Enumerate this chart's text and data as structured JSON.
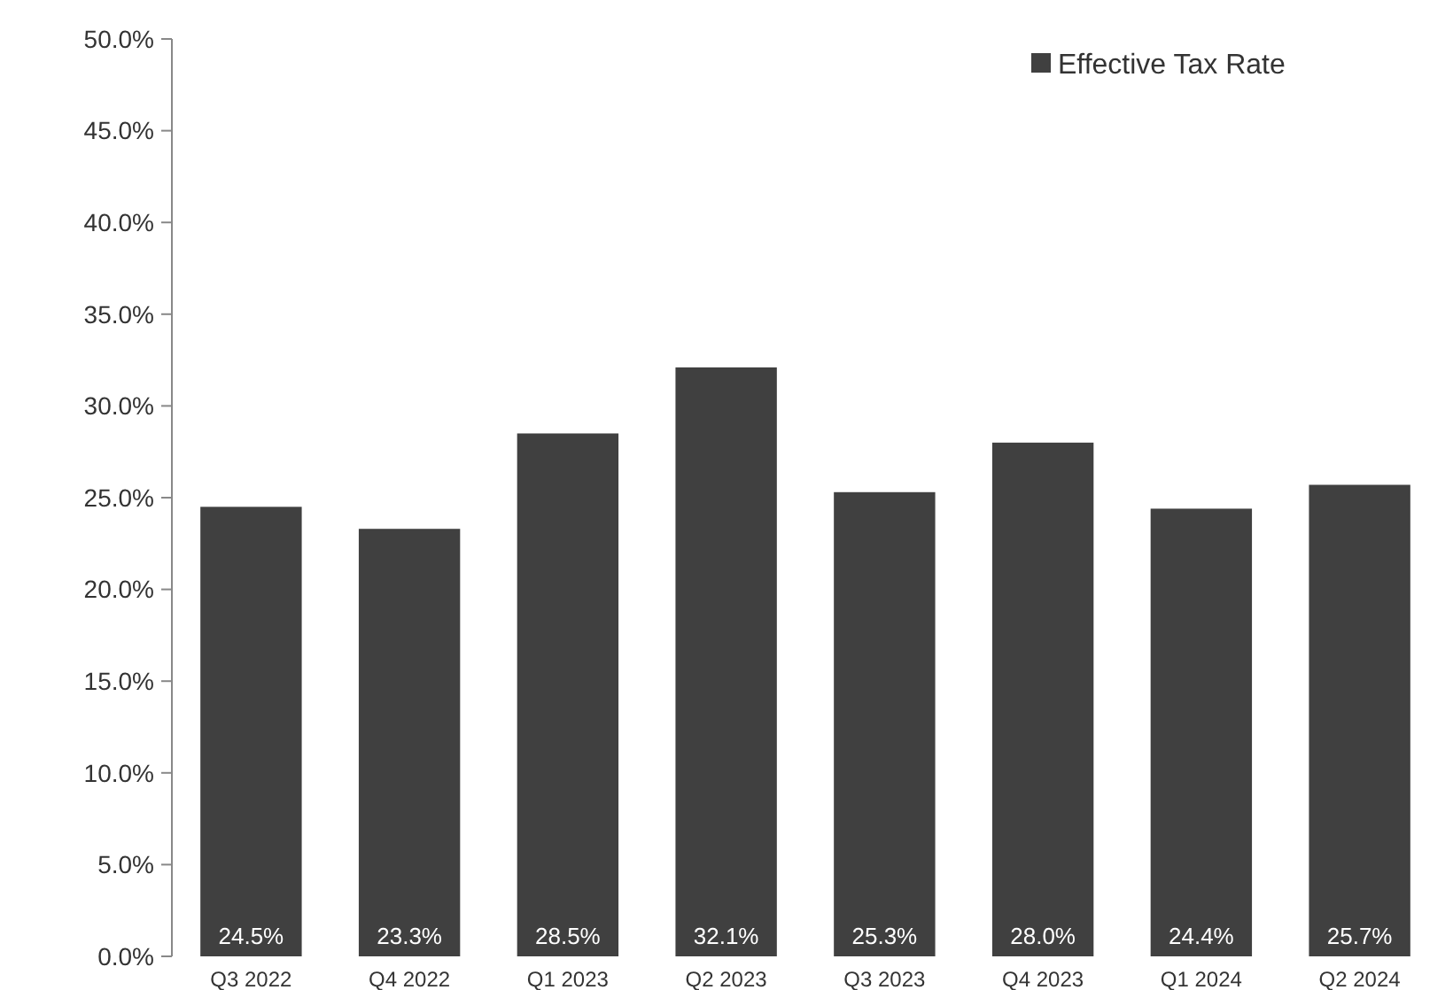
{
  "chart_data": {
    "type": "bar",
    "categories": [
      "Q3 2022",
      "Q4 2022",
      "Q1 2023",
      "Q2 2023",
      "Q3 2023",
      "Q4 2023",
      "Q1 2024",
      "Q2 2024"
    ],
    "series": [
      {
        "name": "Effective Tax Rate",
        "color": "#404040",
        "values": [
          24.5,
          23.3,
          28.5,
          32.1,
          25.3,
          28.0,
          24.4,
          25.7
        ],
        "value_labels": [
          "24.5%",
          "23.3%",
          "28.5%",
          "32.1%",
          "25.3%",
          "28.0%",
          "24.4%",
          "25.7%"
        ]
      }
    ],
    "ylim": [
      0,
      50
    ],
    "yticks": [
      {
        "value": 0,
        "label": "0.0%"
      },
      {
        "value": 5,
        "label": "5.0%"
      },
      {
        "value": 10,
        "label": "10.0%"
      },
      {
        "value": 15,
        "label": "15.0%"
      },
      {
        "value": 20,
        "label": "20.0%"
      },
      {
        "value": 25,
        "label": "25.0%"
      },
      {
        "value": 30,
        "label": "30.0%"
      },
      {
        "value": 35,
        "label": "35.0%"
      },
      {
        "value": 40,
        "label": "40.0%"
      },
      {
        "value": 45,
        "label": "45.0%"
      },
      {
        "value": 50,
        "label": "50.0%"
      }
    ],
    "grid": false,
    "legend": "top right"
  }
}
